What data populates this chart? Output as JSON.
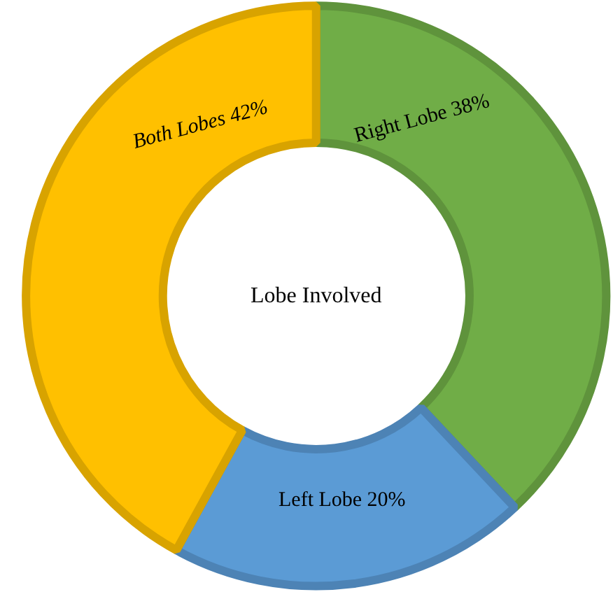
{
  "chart_data": {
    "type": "donut",
    "title": "Lobe Involved",
    "categories": [
      "Right Lobe",
      "Left Lobe",
      "Both Lobes"
    ],
    "values": [
      38,
      20,
      42
    ],
    "value_labels": [
      "38%",
      "20%",
      "42%"
    ],
    "colors": [
      "#70ad47",
      "#5b9bd5",
      "#ffc000"
    ]
  }
}
